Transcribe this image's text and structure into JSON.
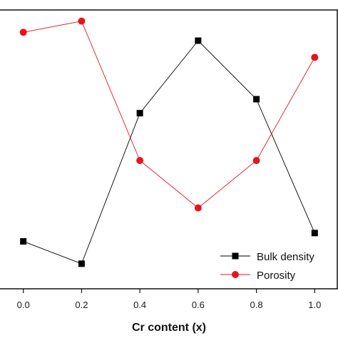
{
  "chart_data": {
    "type": "line",
    "xlabel": "Cr content (x)",
    "x": [
      0.0,
      0.2,
      0.4,
      0.6,
      0.8,
      1.0
    ],
    "x_tick_labels": [
      "0.0",
      "0.2",
      "0.4",
      "0.6",
      "0.8",
      "1.0"
    ],
    "xlim": [
      -0.08,
      1.08
    ],
    "ylim": [
      0,
      1
    ],
    "y_axis_note": "y-axis tick labels not visible; values are relative (0-1) positions estimated from the plot",
    "grid": false,
    "legend_position": "bottom-right",
    "series": [
      {
        "name": "Bulk density",
        "marker": "square",
        "color": "#000000",
        "values": [
          0.17,
          0.09,
          0.63,
          0.89,
          0.68,
          0.2
        ]
      },
      {
        "name": "Porosity",
        "marker": "circle",
        "color": "#e8141c",
        "values": [
          0.92,
          0.96,
          0.46,
          0.29,
          0.46,
          0.83
        ]
      }
    ]
  }
}
